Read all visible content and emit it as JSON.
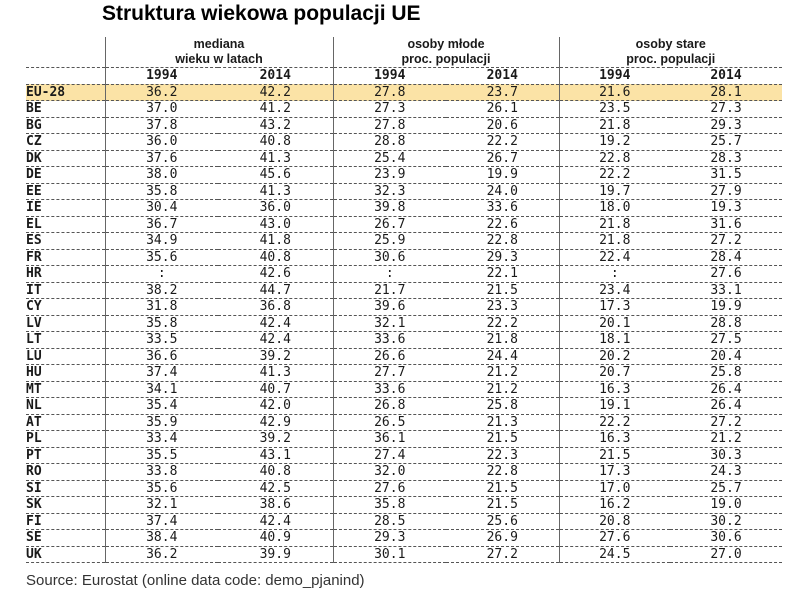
{
  "title": "Struktura wiekowa populacji UE",
  "groups": [
    {
      "line1": "mediana",
      "line2": "wieku w latach"
    },
    {
      "line1": "osoby młode",
      "line2": "proc. populacji"
    },
    {
      "line1": "osoby stare",
      "line2": "proc. populacji"
    }
  ],
  "years": [
    "1994",
    "2014"
  ],
  "rows": [
    {
      "code": "EU-28",
      "v": [
        "36.2",
        "42.2",
        "27.8",
        "23.7",
        "21.6",
        "28.1"
      ]
    },
    {
      "code": "BE",
      "v": [
        "37.0",
        "41.2",
        "27.3",
        "26.1",
        "23.5",
        "27.3"
      ]
    },
    {
      "code": "BG",
      "v": [
        "37.8",
        "43.2",
        "27.8",
        "20.6",
        "21.8",
        "29.3"
      ]
    },
    {
      "code": "CZ",
      "v": [
        "36.0",
        "40.8",
        "28.8",
        "22.2",
        "19.2",
        "25.7"
      ]
    },
    {
      "code": "DK",
      "v": [
        "37.6",
        "41.3",
        "25.4",
        "26.7",
        "22.8",
        "28.3"
      ]
    },
    {
      "code": "DE",
      "v": [
        "38.0",
        "45.6",
        "23.9",
        "19.9",
        "22.2",
        "31.5"
      ]
    },
    {
      "code": "EE",
      "v": [
        "35.8",
        "41.3",
        "32.3",
        "24.0",
        "19.7",
        "27.9"
      ]
    },
    {
      "code": "IE",
      "v": [
        "30.4",
        "36.0",
        "39.8",
        "33.6",
        "18.0",
        "19.3"
      ]
    },
    {
      "code": "EL",
      "v": [
        "36.7",
        "43.0",
        "26.7",
        "22.6",
        "21.8",
        "31.6"
      ]
    },
    {
      "code": "ES",
      "v": [
        "34.9",
        "41.8",
        "25.9",
        "22.8",
        "21.8",
        "27.2"
      ]
    },
    {
      "code": "FR",
      "v": [
        "35.6",
        "40.8",
        "30.6",
        "29.3",
        "22.4",
        "28.4"
      ]
    },
    {
      "code": "HR",
      "v": [
        ":",
        "42.6",
        ":",
        "22.1",
        ":",
        "27.6"
      ]
    },
    {
      "code": "IT",
      "v": [
        "38.2",
        "44.7",
        "21.7",
        "21.5",
        "23.4",
        "33.1"
      ]
    },
    {
      "code": "CY",
      "v": [
        "31.8",
        "36.8",
        "39.6",
        "23.3",
        "17.3",
        "19.9"
      ]
    },
    {
      "code": "LV",
      "v": [
        "35.8",
        "42.4",
        "32.1",
        "22.2",
        "20.1",
        "28.8"
      ]
    },
    {
      "code": "LT",
      "v": [
        "33.5",
        "42.4",
        "33.6",
        "21.8",
        "18.1",
        "27.5"
      ]
    },
    {
      "code": "LU",
      "v": [
        "36.6",
        "39.2",
        "26.6",
        "24.4",
        "20.2",
        "20.4"
      ]
    },
    {
      "code": "HU",
      "v": [
        "37.4",
        "41.3",
        "27.7",
        "21.2",
        "20.7",
        "25.8"
      ]
    },
    {
      "code": "MT",
      "v": [
        "34.1",
        "40.7",
        "33.6",
        "21.2",
        "16.3",
        "26.4"
      ]
    },
    {
      "code": "NL",
      "v": [
        "35.4",
        "42.0",
        "26.8",
        "25.8",
        "19.1",
        "26.4"
      ]
    },
    {
      "code": "AT",
      "v": [
        "35.9",
        "42.9",
        "26.5",
        "21.3",
        "22.2",
        "27.2"
      ]
    },
    {
      "code": "PL",
      "v": [
        "33.4",
        "39.2",
        "36.1",
        "21.5",
        "16.3",
        "21.2"
      ]
    },
    {
      "code": "PT",
      "v": [
        "35.5",
        "43.1",
        "27.4",
        "22.3",
        "21.5",
        "30.3"
      ]
    },
    {
      "code": "RO",
      "v": [
        "33.8",
        "40.8",
        "32.0",
        "22.8",
        "17.3",
        "24.3"
      ]
    },
    {
      "code": "SI",
      "v": [
        "35.6",
        "42.5",
        "27.6",
        "21.5",
        "17.0",
        "25.7"
      ]
    },
    {
      "code": "SK",
      "v": [
        "32.1",
        "38.6",
        "35.8",
        "21.5",
        "16.2",
        "19.0"
      ]
    },
    {
      "code": "FI",
      "v": [
        "37.4",
        "42.4",
        "28.5",
        "25.6",
        "20.8",
        "30.2"
      ]
    },
    {
      "code": "SE",
      "v": [
        "38.4",
        "40.9",
        "29.3",
        "26.9",
        "27.6",
        "30.6"
      ]
    },
    {
      "code": "UK",
      "v": [
        "36.2",
        "39.9",
        "30.1",
        "27.2",
        "24.5",
        "27.0"
      ]
    }
  ],
  "source": "Source: Eurostat (online data code: demo_pjanind)",
  "colors": {
    "highlight_row": "#fbe3a6"
  }
}
